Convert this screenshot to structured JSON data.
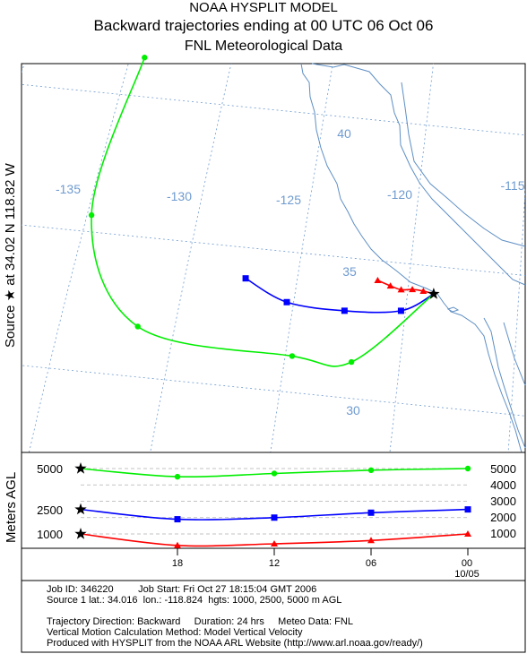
{
  "header": {
    "line1": "NOAA HYSPLIT MODEL",
    "line2": "Backward trajectories ending at 00 UTC 06 Oct 06",
    "line3": "FNL  Meteorological Data"
  },
  "source_label": {
    "text": "Source ★ at   34.02 N  118.82 W"
  },
  "map": {
    "lon_labels": [
      "-135",
      "-130",
      "-125",
      "-120",
      "-115"
    ],
    "lat_labels": [
      "40",
      "35",
      "30"
    ],
    "colors": {
      "grid": "#6f9bd0",
      "coast": "#5f8fc4",
      "label": "#6f9bd0"
    }
  },
  "height_panel": {
    "ylabel": "Meters AGL",
    "left_ticks": [
      "5000",
      "2500",
      "1000"
    ],
    "right_ticks": [
      "5000",
      "4000",
      "3000",
      "2000",
      "1000"
    ],
    "time_ticks": [
      "18",
      "12",
      "06",
      "00"
    ],
    "date_label": "10/05"
  },
  "footer": {
    "line1": "Job ID: 346220         Job Start: Fri Oct 27 18:15:04 GMT 2006",
    "line2": "Source 1 lat.: 34.016  lon.: -118.824  hgts: 1000, 2500, 5000 m AGL",
    "line3": "Trajectory Direction: Backward     Duration: 24 hrs     Meteo Data: FNL",
    "line4": "Vertical Motion Calculation Method: Model Vertical Velocity",
    "line5": "Produced with HYSPLIT from the NOAA ARL Website (http://www.arl.noaa.gov/ready/)"
  },
  "chart_data": {
    "type": "line",
    "title": "Backward trajectories ending at 00 UTC 06 Oct 06",
    "source": {
      "lat": 34.016,
      "lon": -118.824
    },
    "series": [
      {
        "color": "#ff0000",
        "marker": "triangle",
        "start_height_m": 1000,
        "track": [
          [
            -118.82,
            34.02
          ],
          [
            -119.3,
            34.08
          ],
          [
            -119.8,
            34.1
          ],
          [
            -120.3,
            34.05
          ],
          [
            -120.8,
            34.15
          ],
          [
            -121.4,
            34.3
          ]
        ],
        "time_hours": [
          0,
          -6,
          -12,
          -18
        ],
        "height_m": [
          1000,
          600,
          400,
          300
        ]
      },
      {
        "color": "#0000ff",
        "marker": "square",
        "start_height_m": 2500,
        "track": [
          [
            -118.82,
            34.02
          ],
          [
            -120.2,
            33.3
          ],
          [
            -122.7,
            33.1
          ],
          [
            -125.3,
            33.2
          ],
          [
            -127.3,
            33.9
          ]
        ],
        "time_hours": [
          0,
          -6,
          -12,
          -18
        ],
        "height_m": [
          2500,
          2300,
          2000,
          1900
        ]
      },
      {
        "color": "#00ee00",
        "marker": "circle",
        "start_height_m": 5000,
        "track": [
          [
            -118.82,
            34.02
          ],
          [
            -122.1,
            31.3
          ],
          [
            -124.7,
            31.3
          ],
          [
            -131.6,
            31.8
          ],
          [
            -134.8,
            35.6
          ],
          [
            -134.3,
            41.4
          ]
        ],
        "time_hours": [
          0,
          -6,
          -12,
          -18
        ],
        "height_m": [
          5000,
          4900,
          4700,
          4500
        ]
      }
    ]
  }
}
